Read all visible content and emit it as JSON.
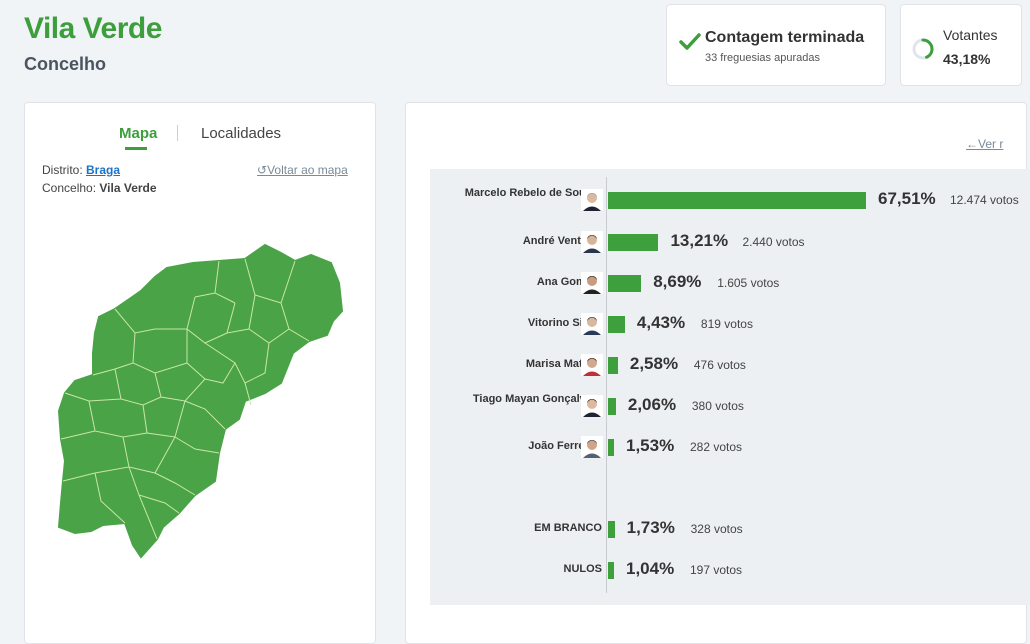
{
  "header": {
    "title": "Vila Verde",
    "subtitle": "Concelho"
  },
  "status": {
    "title": "Contagem terminada",
    "subtitle": "33 freguesias apuradas"
  },
  "votantes": {
    "label": "Votantes",
    "value": "43,18%",
    "progress": 0.4318
  },
  "map_panel": {
    "tabs": [
      "Mapa",
      "Localidades"
    ],
    "distrito_label": "Distrito:",
    "distrito_value": "Braga",
    "concelho_label": "Concelho:",
    "concelho_value": "Vila Verde",
    "back_link": "Voltar ao mapa"
  },
  "results_panel": {
    "ver_link": "Ver r"
  },
  "candidates": [
    {
      "name": "Marcelo Rebelo de Sousa",
      "pct": "67,51%",
      "votes": "12.474 votos",
      "value": 67.51
    },
    {
      "name": "André Ventura",
      "pct": "13,21%",
      "votes": "2.440 votos",
      "value": 13.21
    },
    {
      "name": "Ana Gomes",
      "pct": "8,69%",
      "votes": "1.605 votos",
      "value": 8.69
    },
    {
      "name": "Vitorino Silva",
      "pct": "4,43%",
      "votes": "819 votos",
      "value": 4.43
    },
    {
      "name": "Marisa Matias",
      "pct": "2,58%",
      "votes": "476 votos",
      "value": 2.58
    },
    {
      "name": "Tiago Mayan Gonçalves",
      "pct": "2,06%",
      "votes": "380 votos",
      "value": 2.06
    },
    {
      "name": "João Ferreira",
      "pct": "1,53%",
      "votes": "282 votos",
      "value": 1.53
    }
  ],
  "others": [
    {
      "name": "EM BRANCO",
      "pct": "1,73%",
      "votes": "328 votos",
      "value": 1.73
    },
    {
      "name": "NULOS",
      "pct": "1,04%",
      "votes": "197 votos",
      "value": 1.04
    }
  ],
  "colors": {
    "brand": "#3d9e3c",
    "bar": "#3e9f3d",
    "map": "#4aa347"
  }
}
